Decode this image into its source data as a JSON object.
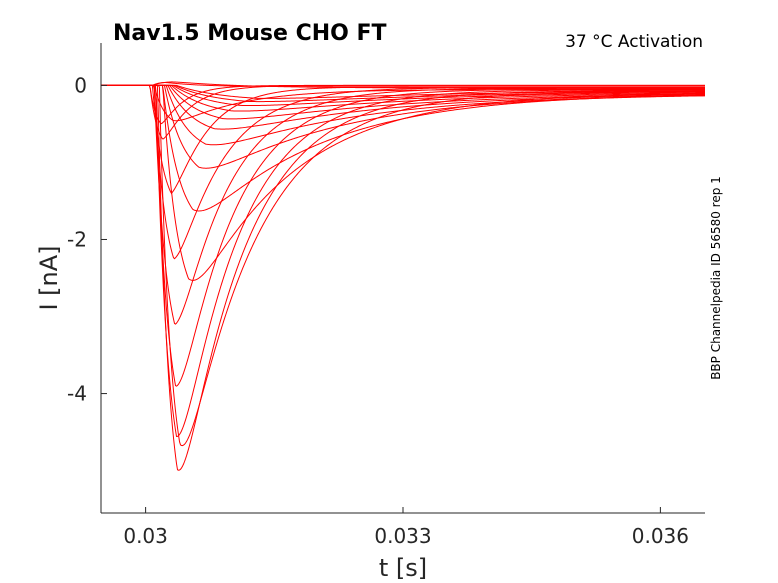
{
  "chart_data": {
    "type": "line",
    "title": "Nav1.5  Mouse  CHO FT",
    "subtitle": "37 °C  Activation",
    "side_note": "BBP Channelpedia ID 56580 rep 1",
    "xlabel": "t [s]",
    "ylabel": "I [nA]",
    "xlim": [
      0.02948,
      0.03652
    ],
    "ylim": [
      -5.55,
      0.55
    ],
    "x_ticks": [
      0.03,
      0.033,
      0.036
    ],
    "x_tick_labels": [
      "0.03",
      "0.033",
      "0.036"
    ],
    "y_ticks": [
      0,
      -2,
      -4
    ],
    "y_tick_labels": [
      "0",
      "-2",
      "-4"
    ],
    "grid": false,
    "line_color": "#ff0000",
    "series": [
      {
        "onset": 0.03005,
        "peak_t": 0.03018,
        "peak": -0.5,
        "decay": 0.00025,
        "tail": 0.0
      },
      {
        "onset": 0.03005,
        "peak_t": 0.0302,
        "peak": -0.7,
        "decay": 0.0003,
        "tail": 0.0
      },
      {
        "onset": 0.03008,
        "peak_t": 0.03022,
        "peak": 0.04,
        "decay": 0.0003,
        "tail": -0.02
      },
      {
        "onset": 0.03008,
        "peak_t": 0.0303,
        "peak": 0.05,
        "decay": 0.0006,
        "tail": -0.04
      },
      {
        "onset": 0.0301,
        "peak_t": 0.03032,
        "peak": -0.45,
        "decay": 0.0008,
        "tail": -0.06
      },
      {
        "onset": 0.03008,
        "peak_t": 0.0303,
        "peak": -1.4,
        "decay": 0.0004,
        "tail": -0.02
      },
      {
        "onset": 0.0301,
        "peak_t": 0.03033,
        "peak": -2.25,
        "decay": 0.00055,
        "tail": -0.03
      },
      {
        "onset": 0.0301,
        "peak_t": 0.03034,
        "peak": -3.1,
        "decay": 0.0006,
        "tail": -0.04
      },
      {
        "onset": 0.03012,
        "peak_t": 0.03035,
        "peak": -3.9,
        "decay": 0.00065,
        "tail": -0.05
      },
      {
        "onset": 0.03012,
        "peak_t": 0.03036,
        "peak": -4.55,
        "decay": 0.0007,
        "tail": -0.06
      },
      {
        "onset": 0.03014,
        "peak_t": 0.03037,
        "peak": -4.98,
        "decay": 0.00075,
        "tail": -0.07
      },
      {
        "onset": 0.03016,
        "peak_t": 0.0304,
        "peak": -4.65,
        "decay": 0.00085,
        "tail": -0.08
      },
      {
        "onset": 0.0302,
        "peak_t": 0.0305,
        "peak": -2.5,
        "decay": 0.0012,
        "tail": -0.1
      },
      {
        "onset": 0.0302,
        "peak_t": 0.03055,
        "peak": -1.6,
        "decay": 0.0015,
        "tail": -0.11
      },
      {
        "onset": 0.03022,
        "peak_t": 0.03062,
        "peak": -1.05,
        "decay": 0.0017,
        "tail": -0.12
      },
      {
        "onset": 0.03024,
        "peak_t": 0.0307,
        "peak": -0.75,
        "decay": 0.0019,
        "tail": -0.12
      },
      {
        "onset": 0.03026,
        "peak_t": 0.0308,
        "peak": -0.55,
        "decay": 0.0021,
        "tail": -0.11
      },
      {
        "onset": 0.03028,
        "peak_t": 0.0309,
        "peak": -0.42,
        "decay": 0.0023,
        "tail": -0.1
      },
      {
        "onset": 0.0303,
        "peak_t": 0.031,
        "peak": -0.32,
        "decay": 0.0025,
        "tail": -0.09
      },
      {
        "onset": 0.03032,
        "peak_t": 0.0311,
        "peak": -0.25,
        "decay": 0.0027,
        "tail": -0.08
      },
      {
        "onset": 0.03034,
        "peak_t": 0.0312,
        "peak": -0.2,
        "decay": 0.0029,
        "tail": -0.07
      },
      {
        "onset": 0.03036,
        "peak_t": 0.0313,
        "peak": -0.16,
        "decay": 0.003,
        "tail": -0.06
      }
    ]
  }
}
